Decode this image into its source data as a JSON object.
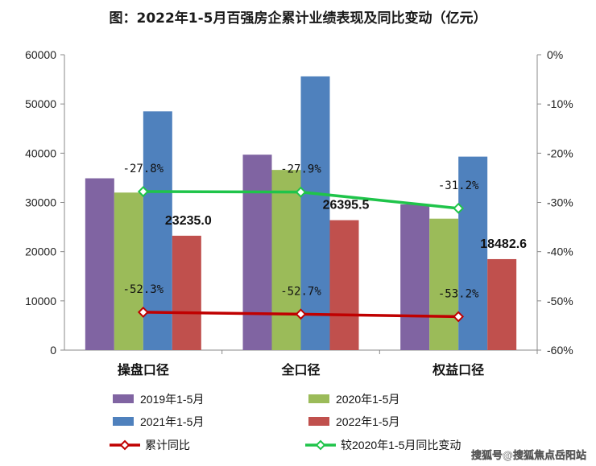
{
  "chart_data": {
    "type": "bar",
    "title": "图：2022年1-5月百强房企累计业绩表现及同比变动（亿元）",
    "categories": [
      "操盘口径",
      "全口径",
      "权益口径"
    ],
    "ylim": [
      0,
      60000
    ],
    "y_ticks": [
      "60000",
      "50000",
      "40000",
      "30000",
      "20000",
      "10000",
      "0"
    ],
    "y2lim": [
      -60,
      0
    ],
    "y2_ticks": [
      "0%",
      "-10%",
      "-20%",
      "-30%",
      "-40%",
      "-50%",
      "-60%"
    ],
    "grid": false,
    "legend_position": "bottom",
    "series": [
      {
        "name": "2019年1-5月",
        "color": "#8064a2",
        "values": [
          34900,
          39700,
          29600
        ]
      },
      {
        "name": "2020年1-5月",
        "color": "#9bbb59",
        "values": [
          32000,
          36600,
          26700
        ]
      },
      {
        "name": "2021年1-5月",
        "color": "#4f81bd",
        "values": [
          48500,
          55600,
          39300
        ]
      },
      {
        "name": "2022年1-5月",
        "color": "#c0504d",
        "values": [
          23235.0,
          26395.5,
          18482.6
        ],
        "labels": [
          "23235.0",
          "26395.5",
          "18482.6"
        ]
      }
    ],
    "line_series": [
      {
        "name": "累计同比",
        "color": "#c00000",
        "axis": "right",
        "values": [
          -52.3,
          -52.7,
          -53.2
        ],
        "labels": [
          "-52.3%",
          "-52.7%",
          "-53.2%"
        ]
      },
      {
        "name": "较2020年1-5月同比变动",
        "color": "#1fc44a",
        "axis": "right",
        "values": [
          -27.8,
          -27.9,
          -31.2
        ],
        "labels": [
          "-27.8%",
          "-27.9%",
          "-31.2%"
        ]
      }
    ]
  },
  "watermark": "搜狐号@搜狐焦点岳阳站"
}
